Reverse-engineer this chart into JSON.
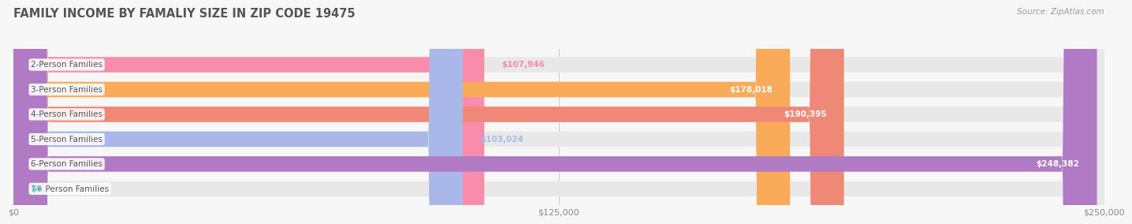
{
  "title": "FAMILY INCOME BY FAMALIY SIZE IN ZIP CODE 19475",
  "source": "Source: ZipAtlas.com",
  "categories": [
    "2-Person Families",
    "3-Person Families",
    "4-Person Families",
    "5-Person Families",
    "6-Person Families",
    "7+ Person Families"
  ],
  "values": [
    107946,
    178018,
    190395,
    103024,
    248382,
    0
  ],
  "bar_colors": [
    "#f98bab",
    "#f9ab5a",
    "#f08878",
    "#a9b8e8",
    "#b07ac4",
    "#6dcdc8"
  ],
  "value_labels": [
    "$107,946",
    "$178,018",
    "$190,395",
    "$103,024",
    "$248,382",
    "$0"
  ],
  "xlim_max": 250000,
  "xticks": [
    0,
    125000,
    250000
  ],
  "xticklabels": [
    "$0",
    "$125,000",
    "$250,000"
  ],
  "bg_color": "#f7f7f7",
  "bar_bg_color": "#e8e8e8",
  "title_color": "#555555",
  "label_text_color": "#555555",
  "source_color": "#999999"
}
